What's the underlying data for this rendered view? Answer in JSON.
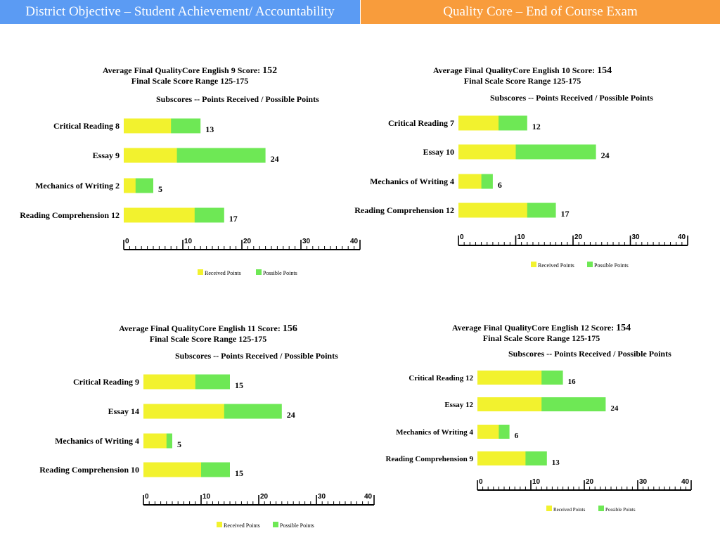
{
  "header": {
    "left_title": "District Objective – Student Achievement/ Accountability",
    "right_title": "Quality Core – End of Course Exam"
  },
  "colors": {
    "received": "#f2f22e",
    "possible": "#6ee855",
    "header_left": "#5b9bf3",
    "header_right": "#f89c3c"
  },
  "chart_data": [
    {
      "type": "bar",
      "title": "Average Final QualityCore English 9 Score:",
      "score": "152",
      "range_label": "Final Scale Score Range 125-175",
      "subtitle": "Subscores -- Points Received / Possible Points",
      "categories": [
        "Critical Reading 8",
        "Essay 9",
        "Mechanics of Writing 2",
        "Reading Comprehension 12"
      ],
      "series": [
        {
          "name": "Received Points",
          "values": [
            8,
            9,
            2,
            12
          ]
        },
        {
          "name": "Possible Points",
          "values": [
            13,
            24,
            5,
            17
          ]
        }
      ],
      "value_labels": [
        "13",
        "24",
        "5",
        "17"
      ],
      "xlim": [
        0,
        40
      ],
      "xticks": [
        "0",
        "10",
        "20",
        "30",
        "40"
      ],
      "legend": "bottom"
    },
    {
      "type": "bar",
      "title": "Average Final QualityCore English 10 Score:",
      "score": "154",
      "range_label": "Final Scale Score Range 125-175",
      "subtitle": "Subscores -- Points Received / Possible Points",
      "categories": [
        "Critical Reading 7",
        "Essay 10",
        "Mechanics of Writing 4",
        "Reading Comprehension 12"
      ],
      "series": [
        {
          "name": "Received Points",
          "values": [
            7,
            10,
            4,
            12
          ]
        },
        {
          "name": "Possible Points",
          "values": [
            12,
            24,
            6,
            17
          ]
        }
      ],
      "value_labels": [
        "12",
        "24",
        "6",
        "17"
      ],
      "xlim": [
        0,
        40
      ],
      "xticks": [
        "0",
        "10",
        "20",
        "30",
        "40"
      ],
      "legend": "bottom"
    },
    {
      "type": "bar",
      "title": "Average Final QualityCore English 11 Score:",
      "score": "156",
      "range_label": "Final Scale Score Range 125-175",
      "subtitle": "Subscores -- Points Received / Possible Points",
      "categories": [
        "Critical Reading 9",
        "Essay 14",
        "Mechanics of Writing 4",
        "Reading Comprehension 10"
      ],
      "series": [
        {
          "name": "Received Points",
          "values": [
            9,
            14,
            4,
            10
          ]
        },
        {
          "name": "Possible Points",
          "values": [
            15,
            24,
            5,
            15
          ]
        }
      ],
      "value_labels": [
        "15",
        "24",
        "5",
        "15"
      ],
      "xlim": [
        0,
        40
      ],
      "xticks": [
        "0",
        "10",
        "20",
        "30",
        "40"
      ],
      "legend": "bottom"
    },
    {
      "type": "bar",
      "title": "Average Final QualityCore English 12 Score:",
      "score": "154",
      "range_label": "Final Scale Score Range 125-175",
      "subtitle": "Subscores -- Points Received / Possible Points",
      "categories": [
        "Critical Reading 12",
        "Essay 12",
        "Mechanics of Writing 4",
        "Reading Comprehension 9"
      ],
      "series": [
        {
          "name": "Received Points",
          "values": [
            12,
            12,
            4,
            9
          ]
        },
        {
          "name": "Possible Points",
          "values": [
            16,
            24,
            6,
            13
          ]
        }
      ],
      "value_labels": [
        "16",
        "24",
        "6",
        "13"
      ],
      "xlim": [
        0,
        40
      ],
      "xticks": [
        "0",
        "10",
        "20",
        "30",
        "40"
      ],
      "legend": "bottom"
    }
  ]
}
